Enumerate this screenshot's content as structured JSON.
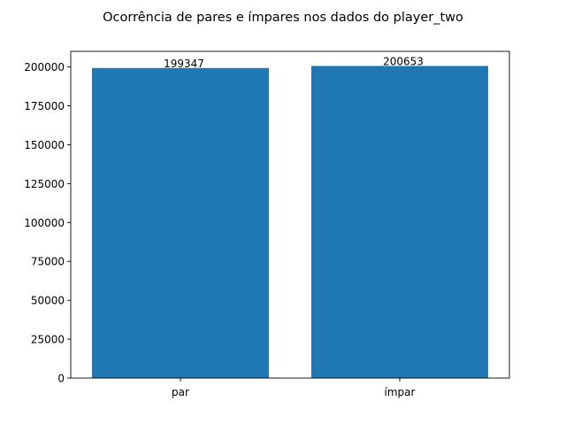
{
  "chart_data": {
    "type": "bar",
    "title": "Ocorrência de pares e ímpares nos dados do player_two",
    "xlabel": "",
    "ylabel": "",
    "categories": [
      "par",
      "ímpar"
    ],
    "values": [
      199347,
      200653
    ],
    "data_labels": [
      "199347",
      "200653"
    ],
    "ylim": [
      0,
      210032
    ],
    "yticks": [
      0,
      25000,
      50000,
      75000,
      100000,
      125000,
      150000,
      175000,
      200000
    ],
    "bar_color": "#1f77b4",
    "grid": false,
    "legend": "none"
  }
}
